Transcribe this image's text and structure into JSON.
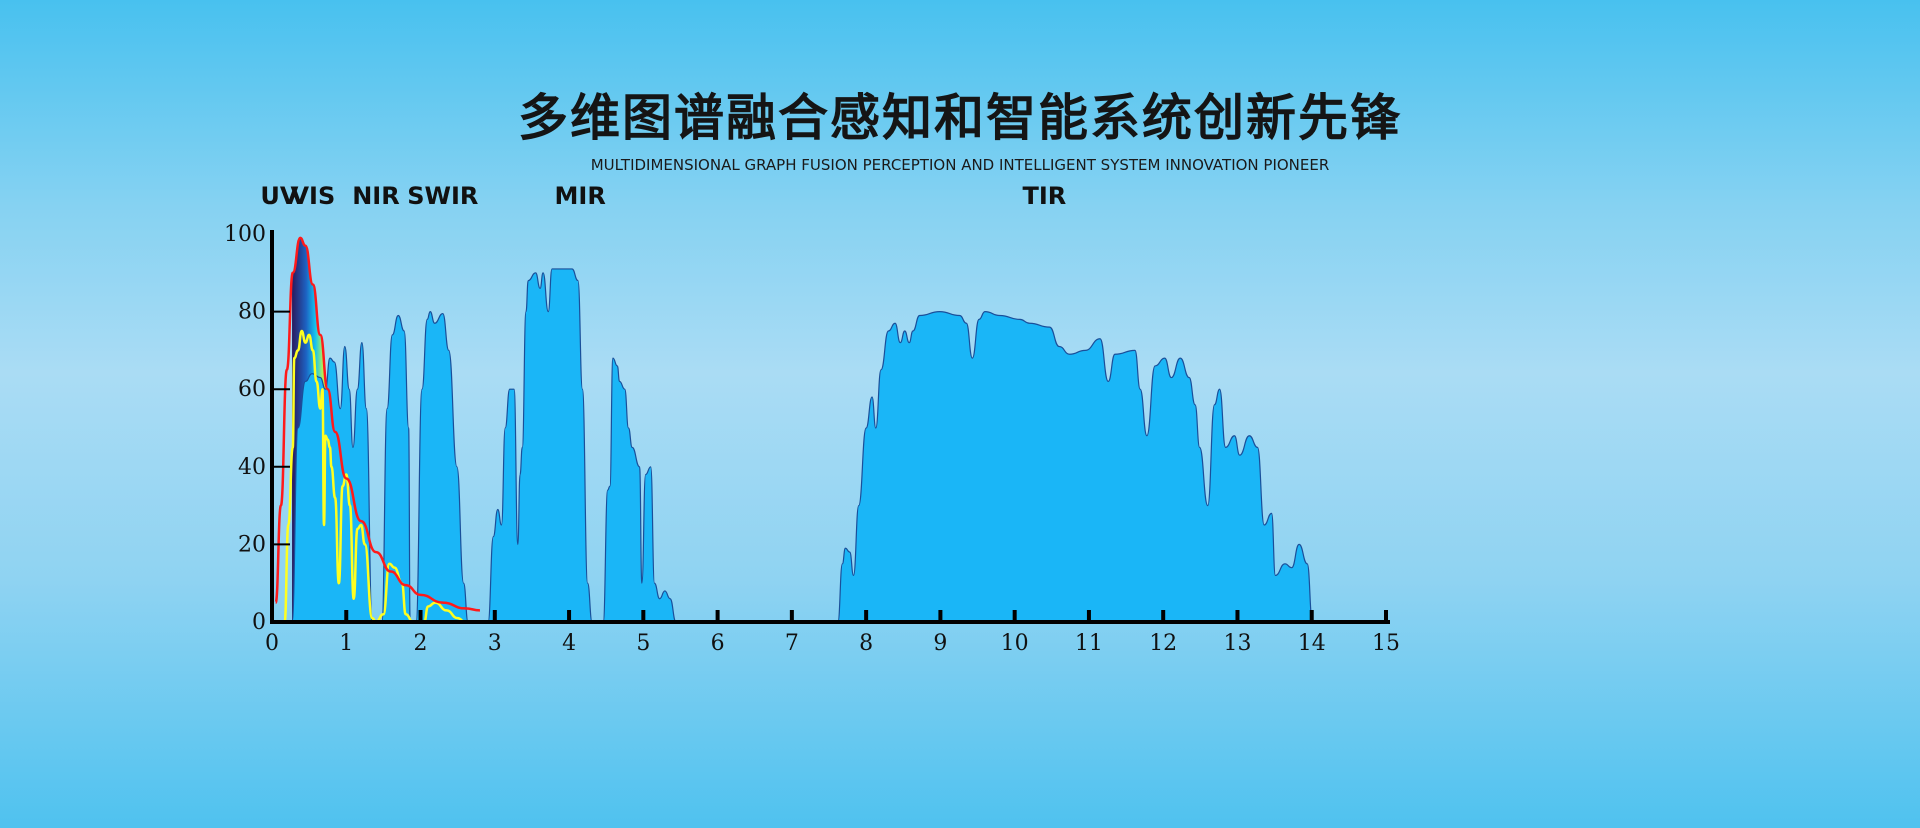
{
  "header": {
    "title": "多维图谱融合感知和智能系统创新先锋",
    "subtitle": "MULTIDIMENSIONAL GRAPH FUSION PERCEPTION AND INTELLIGENT SYSTEM INNOVATION PIONEER"
  },
  "chart_data": {
    "type": "area",
    "title": "",
    "xlabel": "",
    "ylabel": "",
    "xlim": [
      0,
      15
    ],
    "ylim": [
      0,
      100
    ],
    "x_ticks": [
      "0",
      "1",
      "2",
      "3",
      "4",
      "5",
      "6",
      "7",
      "8",
      "9",
      "10",
      "11",
      "12",
      "13",
      "14",
      "15"
    ],
    "y_ticks": [
      "0",
      "20",
      "40",
      "60",
      "80",
      "100"
    ],
    "band_labels": [
      {
        "label": "UV",
        "x": 0.1
      },
      {
        "label": "VIS",
        "x": 0.55
      },
      {
        "label": "NIR",
        "x": 1.4
      },
      {
        "label": "SWIR",
        "x": 2.3
      },
      {
        "label": "MIR",
        "x": 4.15
      },
      {
        "label": "TIR",
        "x": 10.4
      }
    ],
    "colors": {
      "transmission": "#1ab6f7",
      "outline": "#1a4f9a",
      "blackbody": "#ff1a1a",
      "solar": "#ffff20"
    },
    "series": [
      {
        "kind": "transmission-area",
        "points": [
          [
            [
              0.27,
              0
            ],
            [
              0.35,
              50
            ],
            [
              0.45,
              62
            ],
            [
              0.54,
              64
            ],
            [
              0.65,
              63
            ],
            [
              0.72,
              60
            ],
            [
              0.78,
              68
            ],
            [
              0.84,
              67
            ],
            [
              0.92,
              55
            ],
            [
              0.98,
              71
            ],
            [
              1.04,
              60
            ],
            [
              1.09,
              45
            ],
            [
              1.15,
              60
            ],
            [
              1.21,
              72
            ],
            [
              1.27,
              55
            ],
            [
              1.35,
              0
            ]
          ],
          [
            [
              1.48,
              0
            ],
            [
              1.55,
              55
            ],
            [
              1.62,
              74
            ],
            [
              1.7,
              79
            ],
            [
              1.78,
              75
            ],
            [
              1.84,
              50
            ],
            [
              1.86,
              0
            ]
          ],
          [
            [
              1.94,
              0
            ],
            [
              2.02,
              60
            ],
            [
              2.09,
              78
            ],
            [
              2.13,
              80
            ],
            [
              2.19,
              77
            ],
            [
              2.3,
              79.5
            ],
            [
              2.38,
              70
            ],
            [
              2.49,
              40
            ],
            [
              2.58,
              10
            ],
            [
              2.64,
              0
            ]
          ],
          [
            [
              2.91,
              0
            ],
            [
              2.98,
              22
            ],
            [
              3.04,
              29
            ],
            [
              3.09,
              25
            ],
            [
              3.14,
              50
            ],
            [
              3.2,
              60
            ],
            [
              3.26,
              60
            ],
            [
              3.31,
              20
            ],
            [
              3.34,
              38
            ],
            [
              3.37,
              45
            ],
            [
              3.42,
              80
            ],
            [
              3.45,
              88
            ],
            [
              3.55,
              90
            ],
            [
              3.61,
              86
            ],
            [
              3.65,
              90
            ],
            [
              3.72,
              80
            ],
            [
              3.77,
              91
            ],
            [
              4.04,
              91
            ],
            [
              4.12,
              88
            ],
            [
              4.18,
              60
            ],
            [
              4.25,
              10
            ],
            [
              4.31,
              0
            ]
          ],
          [
            [
              4.46,
              0
            ],
            [
              4.52,
              34
            ],
            [
              4.55,
              35
            ],
            [
              4.59,
              68
            ],
            [
              4.65,
              66
            ],
            [
              4.68,
              62
            ],
            [
              4.75,
              60
            ],
            [
              4.8,
              50
            ],
            [
              4.85,
              45
            ],
            [
              4.95,
              40
            ],
            [
              4.98,
              10
            ],
            [
              5.03,
              38
            ],
            [
              5.1,
              40
            ],
            [
              5.15,
              10
            ],
            [
              5.22,
              6
            ],
            [
              5.29,
              8
            ],
            [
              5.36,
              6
            ],
            [
              5.44,
              0
            ]
          ],
          [
            [
              7.62,
              0
            ],
            [
              7.68,
              15
            ],
            [
              7.72,
              19
            ],
            [
              7.78,
              18
            ],
            [
              7.83,
              12
            ],
            [
              7.9,
              30
            ],
            [
              8.0,
              50
            ],
            [
              8.08,
              58
            ],
            [
              8.13,
              50
            ],
            [
              8.2,
              65
            ],
            [
              8.3,
              75
            ],
            [
              8.39,
              77
            ],
            [
              8.46,
              72
            ],
            [
              8.52,
              75
            ],
            [
              8.58,
              72
            ],
            [
              8.63,
              75
            ],
            [
              8.72,
              79
            ],
            [
              8.99,
              80
            ],
            [
              9.26,
              79
            ],
            [
              9.35,
              77
            ],
            [
              9.43,
              68
            ],
            [
              9.52,
              78
            ],
            [
              9.6,
              80
            ],
            [
              9.8,
              79
            ],
            [
              10.07,
              78
            ],
            [
              10.2,
              77
            ],
            [
              10.47,
              76
            ],
            [
              10.6,
              71
            ],
            [
              10.74,
              69
            ],
            [
              10.95,
              70
            ],
            [
              11.15,
              73
            ],
            [
              11.26,
              62
            ],
            [
              11.35,
              69
            ],
            [
              11.62,
              70
            ],
            [
              11.69,
              60
            ],
            [
              11.78,
              48
            ],
            [
              11.89,
              66
            ],
            [
              12.02,
              68
            ],
            [
              12.11,
              63
            ],
            [
              12.23,
              68
            ],
            [
              12.35,
              63
            ],
            [
              12.43,
              56
            ],
            [
              12.49,
              45
            ],
            [
              12.6,
              30
            ],
            [
              12.69,
              56
            ],
            [
              12.76,
              60
            ],
            [
              12.84,
              45
            ],
            [
              12.96,
              48
            ],
            [
              13.03,
              43
            ],
            [
              13.16,
              48
            ],
            [
              13.27,
              45
            ],
            [
              13.36,
              25
            ],
            [
              13.46,
              28
            ],
            [
              13.51,
              12
            ],
            [
              13.64,
              15
            ],
            [
              13.73,
              14
            ],
            [
              13.83,
              20
            ],
            [
              13.94,
              15
            ],
            [
              14.01,
              0
            ]
          ]
        ]
      },
      {
        "kind": "blackbody-curve",
        "points": [
          [
            0.05,
            5
          ],
          [
            0.12,
            30
          ],
          [
            0.2,
            65
          ],
          [
            0.28,
            90
          ],
          [
            0.38,
            99
          ],
          [
            0.45,
            97
          ],
          [
            0.55,
            87
          ],
          [
            0.65,
            74
          ],
          [
            0.75,
            60
          ],
          [
            0.85,
            49
          ],
          [
            1.0,
            37
          ],
          [
            1.2,
            26
          ],
          [
            1.4,
            18
          ],
          [
            1.6,
            13
          ],
          [
            1.8,
            9.5
          ],
          [
            2.0,
            7
          ],
          [
            2.3,
            5
          ],
          [
            2.6,
            3.5
          ],
          [
            2.8,
            3
          ]
        ]
      },
      {
        "kind": "solar-curve",
        "points": [
          [
            0.17,
            0
          ],
          [
            0.22,
            25
          ],
          [
            0.28,
            45
          ],
          [
            0.3,
            68
          ],
          [
            0.35,
            70
          ],
          [
            0.4,
            75
          ],
          [
            0.45,
            72
          ],
          [
            0.5,
            74
          ],
          [
            0.55,
            70
          ],
          [
            0.6,
            62
          ],
          [
            0.65,
            55
          ],
          [
            0.68,
            60
          ],
          [
            0.7,
            25
          ],
          [
            0.72,
            48
          ],
          [
            0.75,
            47
          ],
          [
            0.78,
            45
          ],
          [
            0.8,
            40
          ],
          [
            0.85,
            32
          ],
          [
            0.9,
            10
          ],
          [
            0.95,
            35
          ],
          [
            1.0,
            38
          ],
          [
            1.05,
            30
          ],
          [
            1.1,
            6
          ],
          [
            1.15,
            24
          ],
          [
            1.2,
            25
          ],
          [
            1.25,
            20
          ],
          [
            1.35,
            1
          ],
          [
            1.4,
            0
          ],
          [
            1.5,
            2
          ],
          [
            1.58,
            15
          ],
          [
            1.65,
            14
          ],
          [
            1.75,
            10
          ],
          [
            1.8,
            2
          ],
          [
            1.9,
            0
          ],
          [
            2.05,
            0
          ],
          [
            2.1,
            4
          ],
          [
            2.2,
            5
          ],
          [
            2.35,
            3
          ],
          [
            2.5,
            1
          ],
          [
            2.6,
            0
          ]
        ]
      }
    ]
  }
}
